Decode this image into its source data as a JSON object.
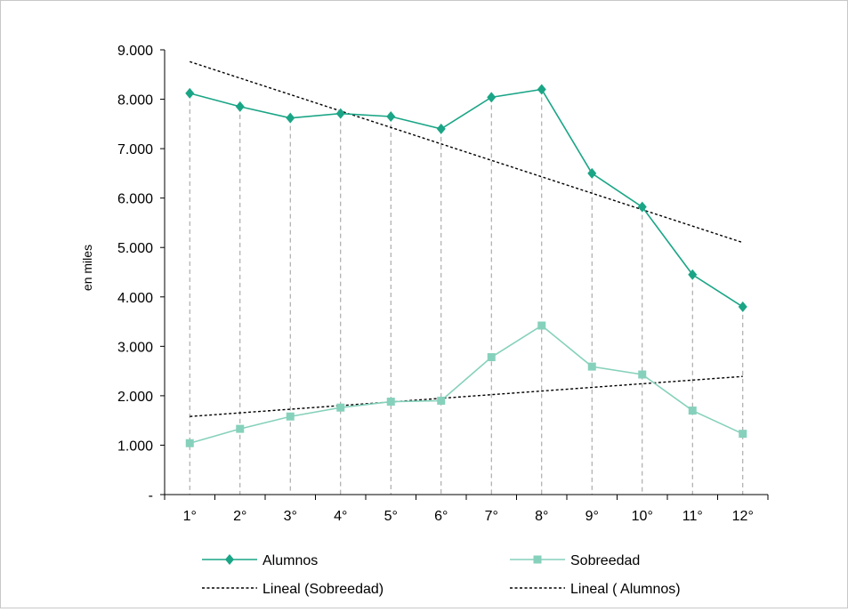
{
  "chart_data": {
    "type": "line",
    "title": "",
    "xlabel": "",
    "ylabel": "en miles",
    "categories": [
      "1°",
      "2°",
      "3°",
      "4°",
      "5°",
      "6°",
      "7°",
      "8°",
      "9°",
      "10°",
      "11°",
      "12°"
    ],
    "ylim": [
      0,
      9000
    ],
    "yticks": [
      {
        "value": 0,
        "label": "-"
      },
      {
        "value": 1000,
        "label": "1.000"
      },
      {
        "value": 2000,
        "label": "2.000"
      },
      {
        "value": 3000,
        "label": "3.000"
      },
      {
        "value": 4000,
        "label": "4.000"
      },
      {
        "value": 5000,
        "label": "5.000"
      },
      {
        "value": 6000,
        "label": "6.000"
      },
      {
        "value": 7000,
        "label": "7.000"
      },
      {
        "value": 8000,
        "label": "8.000"
      },
      {
        "value": 9000,
        "label": "9.000"
      }
    ],
    "grid": "vertical dashed drop lines from points",
    "legend_position": "bottom",
    "series": [
      {
        "name": "Alumnos",
        "color": "#1aa586",
        "marker": "diamond",
        "values": [
          8120,
          7850,
          7620,
          7710,
          7650,
          7400,
          8040,
          8200,
          6500,
          5820,
          4450,
          3800
        ]
      },
      {
        "name": "Sobreedad",
        "color": "#86d1bb",
        "marker": "square",
        "values": [
          1040,
          1330,
          1580,
          1760,
          1880,
          1900,
          2780,
          3420,
          2590,
          2430,
          1700,
          1230
        ]
      }
    ],
    "trendlines": [
      {
        "name": "Lineal (Sobreedad)",
        "color": "#000000",
        "style": "dotted",
        "start": 1580,
        "end": 2390
      },
      {
        "name": "Lineal ( Alumnos)",
        "color": "#000000",
        "style": "dotted",
        "start": 8760,
        "end": 5100
      }
    ]
  }
}
